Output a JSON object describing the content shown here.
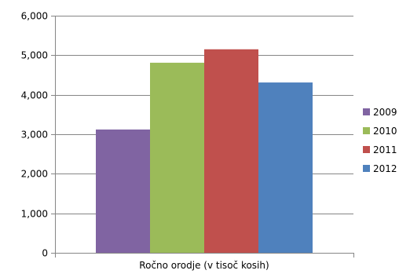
{
  "chart_data": {
    "type": "bar",
    "categories": [
      "Ročno orodje (v tisoč kosih)"
    ],
    "series": [
      {
        "name": "2009",
        "values": [
          3120
        ],
        "color": "#8064A2"
      },
      {
        "name": "2010",
        "values": [
          4810
        ],
        "color": "#9BBB59"
      },
      {
        "name": "2011",
        "values": [
          5150
        ],
        "color": "#C0504D"
      },
      {
        "name": "2012",
        "values": [
          4310
        ],
        "color": "#4F81BD"
      }
    ],
    "y_ticks": [
      "0",
      "1,000",
      "2,000",
      "3,000",
      "4,000",
      "5,000",
      "6,000"
    ],
    "ylim": [
      0,
      6000
    ],
    "grid": true,
    "legend": "right",
    "gridline_color": "#868686",
    "axis_color": "#868686"
  }
}
